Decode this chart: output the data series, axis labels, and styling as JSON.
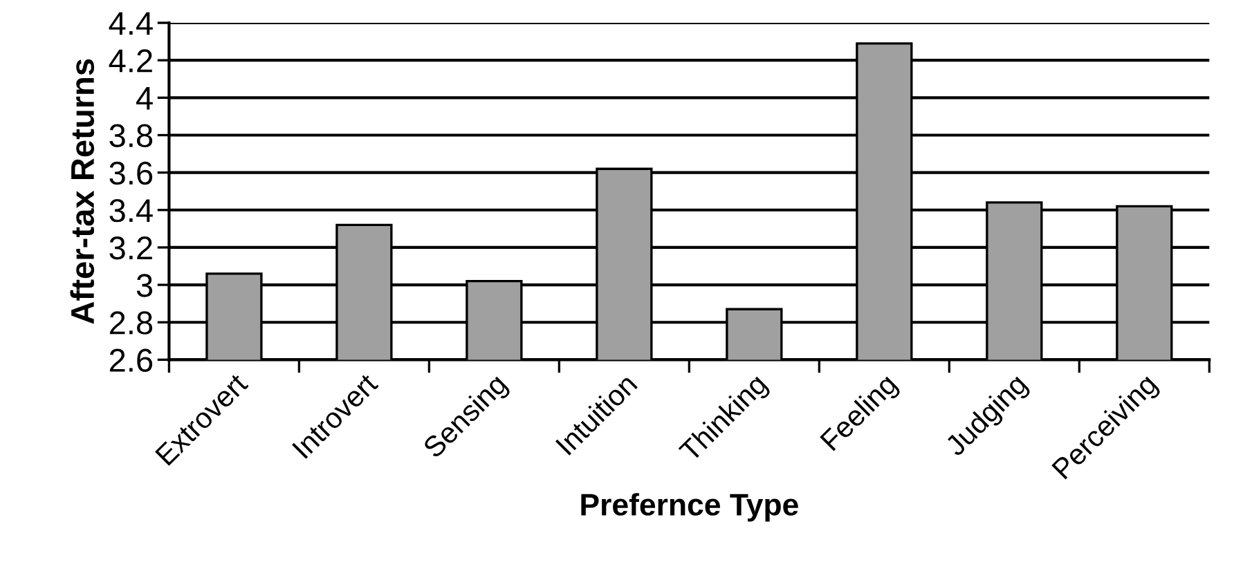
{
  "chart_data": {
    "type": "bar",
    "xlabel": "Prefernce Type",
    "ylabel": "After-tax Returns",
    "categories": [
      "Extrovert",
      "Introvert",
      "Sensing",
      "Intuition",
      "Thinking",
      "Feeling",
      "Judging",
      "Perceiving"
    ],
    "values": [
      3.06,
      3.32,
      3.02,
      3.62,
      2.87,
      4.29,
      3.44,
      3.42
    ],
    "color": "#a0a0a0",
    "ylim": [
      2.6,
      4.4
    ],
    "yticks": [
      2.6,
      2.8,
      3,
      3.2,
      3.4,
      3.6,
      3.8,
      4,
      4.2,
      4.4
    ],
    "grid": "y"
  }
}
